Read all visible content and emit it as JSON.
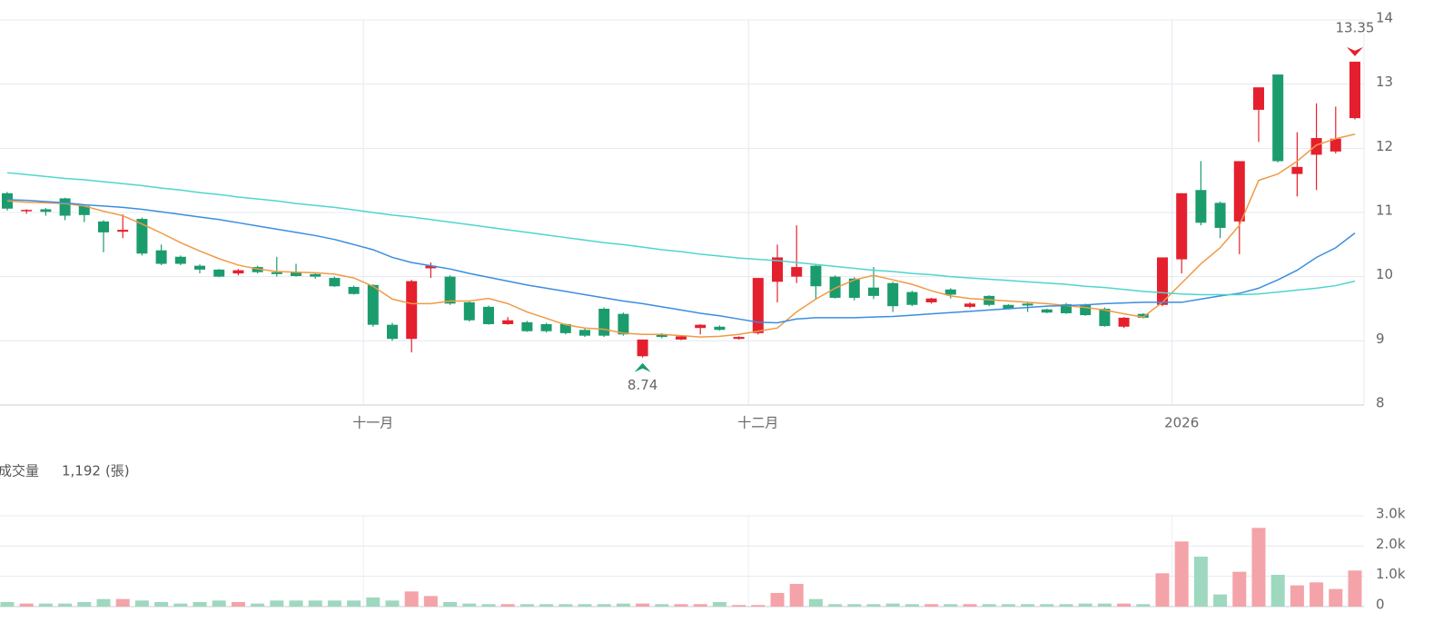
{
  "chart_data": {
    "type": "candlestick",
    "up_color": "#e5202e",
    "down_color": "#1b9c6d",
    "grid": true,
    "categories": [
      null,
      null,
      null,
      null,
      null,
      null,
      null,
      null,
      null,
      null,
      null,
      null,
      null,
      null,
      null,
      null,
      null,
      null,
      null,
      "十一月",
      null,
      null,
      null,
      null,
      null,
      null,
      null,
      null,
      null,
      null,
      null,
      null,
      null,
      null,
      null,
      null,
      null,
      null,
      null,
      "十二月",
      null,
      null,
      null,
      null,
      null,
      null,
      null,
      null,
      null,
      null,
      null,
      null,
      null,
      null,
      null,
      null,
      null,
      null,
      null,
      null,
      null,
      "2026",
      null,
      null,
      null,
      null,
      null,
      null,
      null,
      null,
      null
    ],
    "open": [
      11.3,
      11.02,
      11.05,
      11.22,
      11.1,
      10.86,
      10.7,
      10.9,
      10.41,
      10.31,
      10.17,
      10.11,
      10.05,
      10.15,
      10.07,
      10.07,
      10.04,
      9.98,
      9.84,
      9.87,
      9.25,
      9.03,
      10.13,
      10.0,
      9.6,
      9.53,
      9.26,
      9.29,
      9.26,
      9.26,
      9.17,
      9.5,
      9.42,
      8.76,
      9.1,
      9.02,
      9.2,
      9.22,
      9.03,
      9.12,
      9.92,
      10.0,
      10.17,
      10.0,
      9.97,
      9.83,
      9.9,
      9.76,
      9.6,
      9.8,
      9.53,
      9.7,
      9.56,
      9.58,
      9.49,
      9.57,
      9.56,
      9.5,
      9.22,
      9.42,
      9.56,
      10.27,
      11.35,
      11.15,
      10.86,
      12.6,
      13.15,
      11.6,
      11.9,
      11.95,
      12.47
    ],
    "high": [
      11.32,
      11.05,
      11.07,
      11.23,
      11.12,
      10.88,
      10.97,
      10.92,
      10.5,
      10.33,
      10.19,
      10.12,
      10.12,
      10.17,
      10.31,
      10.2,
      10.06,
      10.0,
      9.86,
      9.88,
      9.28,
      9.95,
      10.22,
      10.02,
      9.62,
      9.55,
      9.37,
      9.31,
      9.28,
      9.27,
      9.19,
      9.52,
      9.44,
      9.02,
      9.12,
      9.08,
      9.26,
      9.24,
      9.07,
      9.98,
      10.5,
      10.8,
      10.2,
      10.02,
      9.99,
      10.15,
      9.92,
      9.78,
      9.67,
      9.82,
      9.6,
      9.71,
      9.57,
      9.6,
      9.5,
      9.59,
      9.58,
      9.52,
      9.37,
      9.43,
      10.3,
      11.3,
      11.8,
      11.17,
      11.8,
      12.95,
      13.15,
      12.25,
      12.7,
      12.65,
      13.35
    ],
    "low": [
      11.03,
      10.98,
      10.95,
      10.88,
      10.85,
      10.38,
      10.6,
      10.33,
      10.18,
      10.18,
      10.05,
      9.99,
      10.02,
      10.05,
      10.0,
      10.0,
      9.97,
      9.84,
      9.72,
      9.22,
      9.0,
      8.82,
      9.98,
      9.56,
      9.3,
      9.25,
      9.25,
      9.14,
      9.13,
      9.1,
      9.06,
      9.06,
      9.08,
      8.74,
      9.04,
      9.01,
      9.1,
      9.16,
      9.02,
      9.1,
      9.6,
      9.9,
      9.65,
      9.66,
      9.63,
      9.65,
      9.45,
      9.54,
      9.58,
      9.66,
      9.51,
      9.54,
      9.49,
      9.45,
      9.43,
      9.42,
      9.39,
      9.22,
      9.2,
      9.35,
      9.54,
      10.05,
      10.8,
      10.6,
      10.35,
      12.1,
      11.78,
      11.25,
      11.35,
      11.92,
      12.45
    ],
    "close": [
      11.06,
      11.04,
      11.01,
      10.95,
      10.96,
      10.69,
      10.73,
      10.36,
      10.2,
      10.2,
      10.11,
      10.0,
      10.1,
      10.07,
      10.04,
      10.01,
      10.0,
      9.85,
      9.73,
      9.25,
      9.03,
      9.93,
      10.17,
      9.58,
      9.32,
      9.26,
      9.32,
      9.15,
      9.15,
      9.12,
      9.08,
      9.08,
      9.1,
      9.02,
      9.06,
      9.07,
      9.25,
      9.17,
      9.06,
      9.98,
      10.3,
      10.15,
      9.85,
      9.67,
      9.67,
      9.7,
      9.54,
      9.56,
      9.66,
      9.72,
      9.58,
      9.56,
      9.5,
      9.55,
      9.44,
      9.43,
      9.4,
      9.23,
      9.36,
      9.36,
      10.3,
      11.3,
      10.84,
      10.76,
      11.8,
      12.95,
      11.8,
      11.71,
      12.16,
      12.15,
      13.35
    ],
    "series": [
      {
        "color": "#f09a45",
        "values": [
          11.18,
          11.16,
          11.15,
          11.14,
          11.1,
          11.02,
          10.95,
          10.82,
          10.68,
          10.53,
          10.4,
          10.28,
          10.18,
          10.12,
          10.08,
          10.07,
          10.06,
          10.04,
          9.98,
          9.85,
          9.65,
          9.58,
          9.58,
          9.62,
          9.62,
          9.66,
          9.58,
          9.45,
          9.35,
          9.25,
          9.2,
          9.18,
          9.12,
          9.1,
          9.1,
          9.08,
          9.06,
          9.07,
          9.1,
          9.15,
          9.2,
          9.45,
          9.65,
          9.82,
          9.95,
          10.02,
          9.95,
          9.88,
          9.78,
          9.7,
          9.66,
          9.64,
          9.62,
          9.6,
          9.58,
          9.55,
          9.52,
          9.48,
          9.42,
          9.37,
          9.6,
          9.9,
          10.2,
          10.45,
          10.8,
          11.5,
          11.6,
          11.8,
          12.05,
          12.15,
          12.22
        ]
      },
      {
        "color": "#3a8ee0",
        "values": [
          11.2,
          11.19,
          11.17,
          11.15,
          11.12,
          11.1,
          11.08,
          11.05,
          11.01,
          10.97,
          10.93,
          10.89,
          10.84,
          10.79,
          10.74,
          10.69,
          10.64,
          10.58,
          10.5,
          10.42,
          10.3,
          10.22,
          10.17,
          10.12,
          10.05,
          9.99,
          9.93,
          9.87,
          9.82,
          9.77,
          9.72,
          9.67,
          9.62,
          9.58,
          9.53,
          9.48,
          9.43,
          9.39,
          9.34,
          9.29,
          9.28,
          9.34,
          9.36,
          9.36,
          9.36,
          9.37,
          9.38,
          9.4,
          9.42,
          9.44,
          9.46,
          9.48,
          9.5,
          9.52,
          9.54,
          9.55,
          9.56,
          9.58,
          9.59,
          9.6,
          9.6,
          9.6,
          9.65,
          9.7,
          9.74,
          9.82,
          9.95,
          10.1,
          10.3,
          10.45,
          10.68
        ]
      },
      {
        "color": "#4fd6cc",
        "values": [
          11.62,
          11.59,
          11.56,
          11.53,
          11.51,
          11.48,
          11.45,
          11.42,
          11.38,
          11.35,
          11.31,
          11.28,
          11.24,
          11.21,
          11.18,
          11.14,
          11.11,
          11.08,
          11.04,
          11.0,
          10.96,
          10.93,
          10.89,
          10.85,
          10.81,
          10.77,
          10.73,
          10.69,
          10.65,
          10.61,
          10.57,
          10.53,
          10.5,
          10.46,
          10.42,
          10.39,
          10.35,
          10.32,
          10.29,
          10.27,
          10.25,
          10.22,
          10.19,
          10.16,
          10.13,
          10.1,
          10.08,
          10.05,
          10.03,
          10.0,
          9.98,
          9.96,
          9.94,
          9.92,
          9.9,
          9.88,
          9.85,
          9.83,
          9.8,
          9.77,
          9.75,
          9.73,
          9.72,
          9.72,
          9.72,
          9.73,
          9.76,
          9.79,
          9.82,
          9.86,
          9.93
        ]
      }
    ],
    "ylim": [
      8,
      14
    ],
    "yticks": [
      8,
      9,
      10,
      11,
      12,
      13,
      14
    ],
    "max_marker": {
      "index": 70,
      "value": 13.35
    },
    "min_marker": {
      "index": 33,
      "value": 8.74
    },
    "volume": {
      "title": "成交量",
      "latest": {
        "value": 1192,
        "label": "1,192"
      },
      "unit": "(張)",
      "up_color": "#f4a3a8",
      "down_color": "#9ed8bf",
      "values": [
        150,
        100,
        100,
        100,
        150,
        250,
        250,
        200,
        150,
        100,
        150,
        200,
        150,
        100,
        200,
        200,
        200,
        200,
        200,
        300,
        200,
        500,
        350,
        150,
        100,
        80,
        80,
        80,
        80,
        80,
        80,
        80,
        100,
        100,
        80,
        80,
        80,
        150,
        50,
        50,
        450,
        750,
        250,
        80,
        80,
        80,
        100,
        80,
        80,
        80,
        80,
        80,
        80,
        80,
        80,
        80,
        100,
        100,
        100,
        80,
        1100,
        2150,
        1650,
        400,
        1150,
        2600,
        1050,
        700,
        800,
        580,
        1192
      ],
      "ylim": [
        0,
        3000
      ],
      "yticks": [
        {
          "value": 0,
          "label": "0"
        },
        {
          "value": 1000,
          "label": "1.0k"
        },
        {
          "value": 2000,
          "label": "2.0k"
        },
        {
          "value": 3000,
          "label": "3.0k"
        }
      ]
    }
  }
}
